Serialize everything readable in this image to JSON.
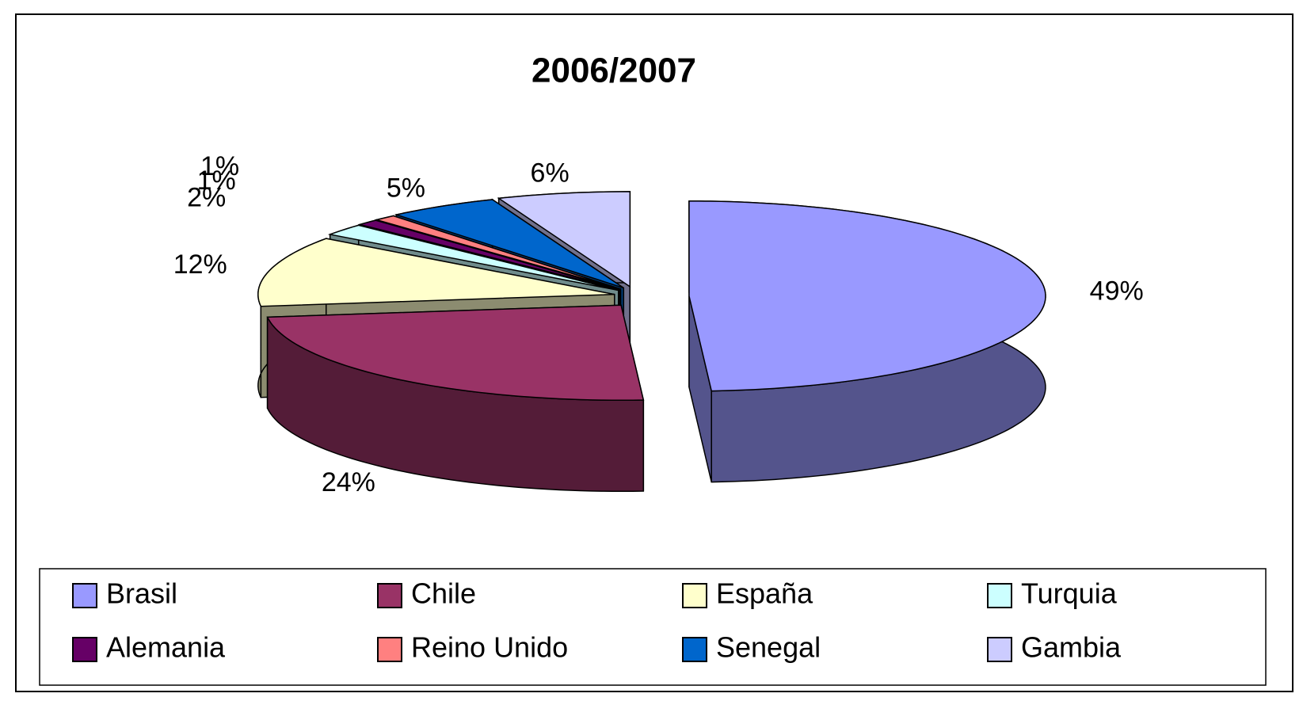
{
  "chart_data": {
    "type": "pie3d",
    "title": "2006/2007",
    "categories": [
      "Brasil",
      "Chile",
      "España",
      "Turquia",
      "Alemania",
      "Reino Unido",
      "Senegal",
      "Gambia"
    ],
    "values": [
      49,
      24,
      12,
      2,
      1,
      1,
      5,
      6
    ],
    "value_labels": [
      "49%",
      "24%",
      "12%",
      "2%",
      "1%",
      "1%",
      "5%",
      "6%"
    ],
    "colors": [
      "#9999ff",
      "#993366",
      "#ffffcc",
      "#ccffff",
      "#660066",
      "#ff8080",
      "#0066cc",
      "#ccccff"
    ],
    "legend": "bottom"
  }
}
